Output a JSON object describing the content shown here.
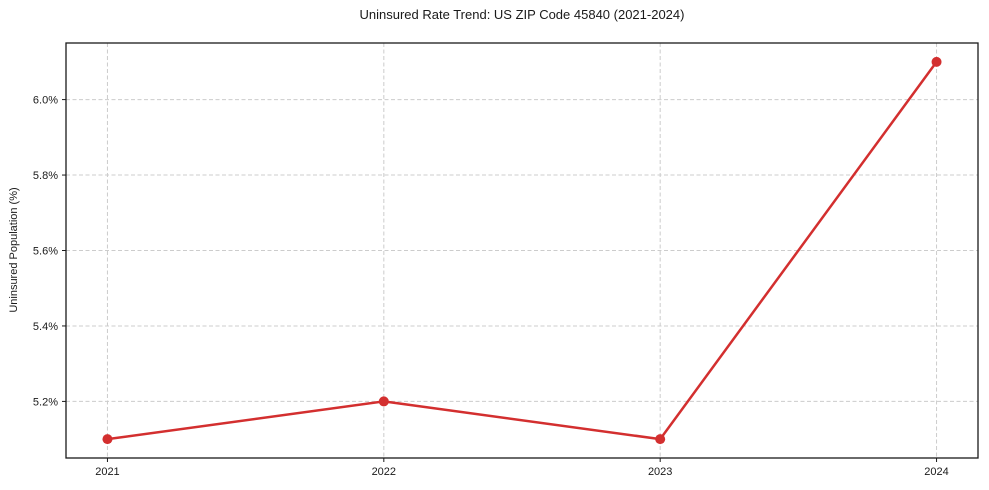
{
  "chart_data": {
    "type": "line",
    "title": "Uninsured Rate Trend: US ZIP Code 45840 (2021-2024)",
    "xlabel": "",
    "ylabel": "Uninsured Population (%)",
    "x": [
      2021,
      2022,
      2023,
      2024
    ],
    "xtick_labels": [
      "2021",
      "2022",
      "2023",
      "2024"
    ],
    "series": [
      {
        "name": "uninsured-rate",
        "values": [
          5.1,
          5.2,
          5.1,
          6.1
        ],
        "color": "#d32f2f"
      }
    ],
    "yticks": [
      5.2,
      5.4,
      5.6,
      5.8,
      6.0
    ],
    "ytick_labels": [
      "5.2%",
      "5.4%",
      "5.6%",
      "5.8%",
      "6.0%"
    ],
    "xlim": [
      2020.85,
      2024.15
    ],
    "ylim": [
      5.05,
      6.15
    ],
    "grid": true,
    "grid_style": "dashed",
    "legend_position": "none"
  },
  "colors": {
    "line": "#d32f2f",
    "grid": "#cccccc",
    "axis": "#1a1a1a",
    "text": "#1a1a1a",
    "background": "#ffffff"
  }
}
